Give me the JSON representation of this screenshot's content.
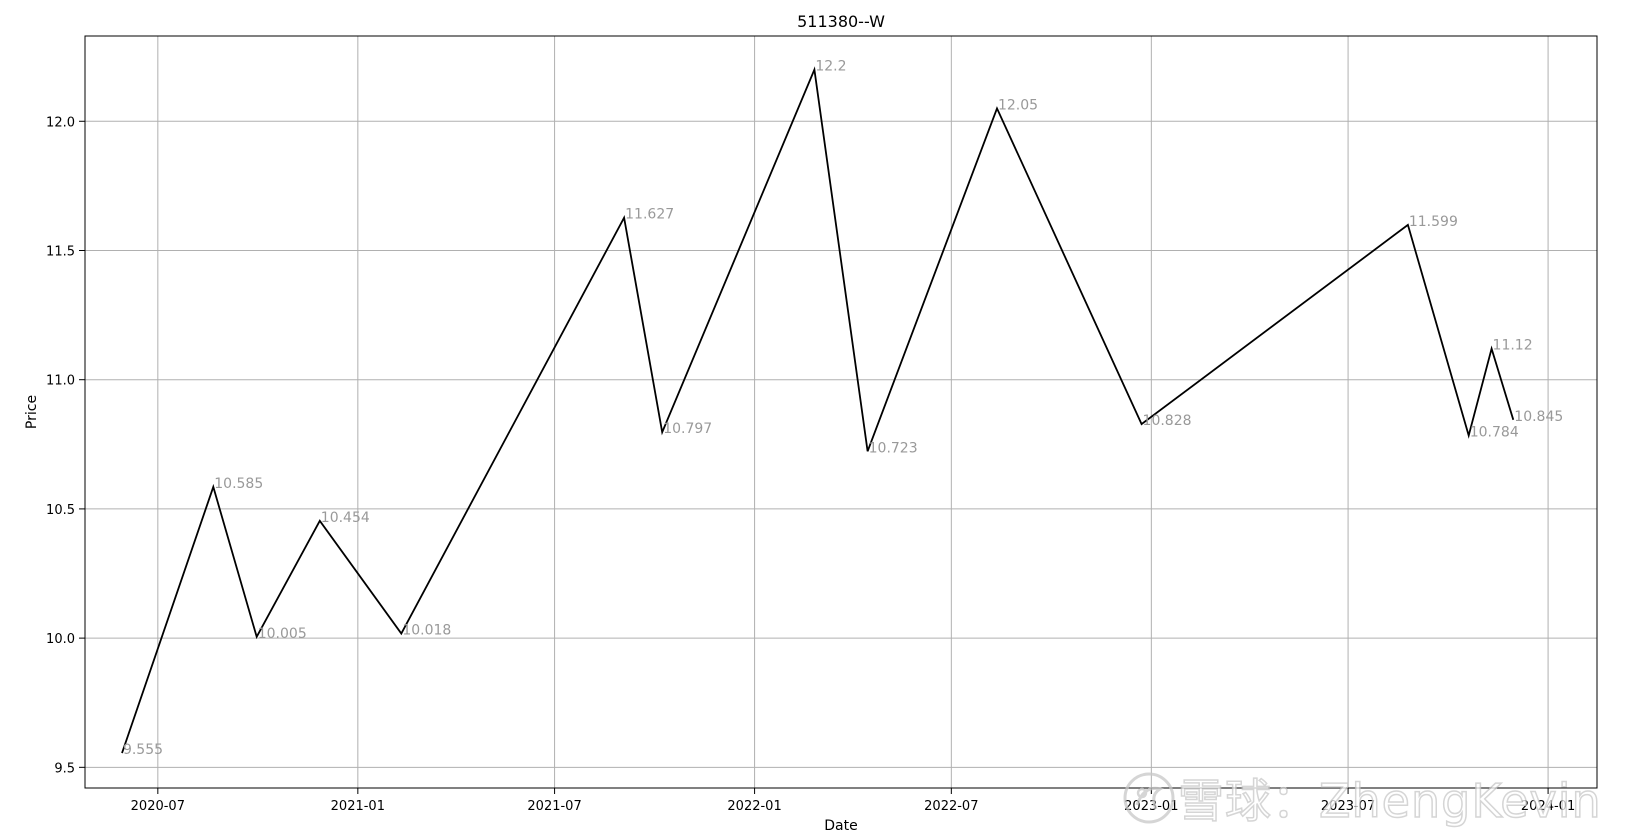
{
  "chart_data": {
    "type": "line",
    "title": "511380--W",
    "xlabel": "Date",
    "ylabel": "Price",
    "x_range": [
      "2020-04-25",
      "2024-02-15"
    ],
    "ylim": [
      9.42,
      12.33
    ],
    "x_ticks": [
      {
        "date": "2020-07-01",
        "label": "2020-07"
      },
      {
        "date": "2021-01-01",
        "label": "2021-01"
      },
      {
        "date": "2021-07-01",
        "label": "2021-07"
      },
      {
        "date": "2022-01-01",
        "label": "2022-01"
      },
      {
        "date": "2022-07-01",
        "label": "2022-07"
      },
      {
        "date": "2023-01-01",
        "label": "2023-01"
      },
      {
        "date": "2023-07-01",
        "label": "2023-07"
      },
      {
        "date": "2024-01-01",
        "label": "2024-01"
      }
    ],
    "y_ticks": [
      {
        "value": 9.5,
        "label": "9.5"
      },
      {
        "value": 10.0,
        "label": "10.0"
      },
      {
        "value": 10.5,
        "label": "10.5"
      },
      {
        "value": 11.0,
        "label": "11.0"
      },
      {
        "value": 11.5,
        "label": "11.5"
      },
      {
        "value": 12.0,
        "label": "12.0"
      }
    ],
    "grid": true,
    "series": [
      {
        "line_color": "#000000",
        "label_color": "#999999",
        "points": [
          {
            "x": "2020-05-29",
            "y": 9.555,
            "label": "9.555"
          },
          {
            "x": "2020-08-21",
            "y": 10.585,
            "label": "10.585"
          },
          {
            "x": "2020-09-30",
            "y": 10.005,
            "label": "10.005"
          },
          {
            "x": "2020-11-27",
            "y": 10.454,
            "label": "10.454"
          },
          {
            "x": "2021-02-10",
            "y": 10.018,
            "label": "10.018"
          },
          {
            "x": "2021-09-03",
            "y": 11.627,
            "label": "11.627"
          },
          {
            "x": "2021-10-08",
            "y": 10.797,
            "label": "10.797"
          },
          {
            "x": "2022-02-25",
            "y": 12.2,
            "label": "12.2"
          },
          {
            "x": "2022-04-15",
            "y": 10.723,
            "label": "10.723"
          },
          {
            "x": "2022-08-12",
            "y": 12.05,
            "label": "12.05"
          },
          {
            "x": "2022-12-23",
            "y": 10.828,
            "label": "10.828"
          },
          {
            "x": "2023-08-25",
            "y": 11.599,
            "label": "11.599"
          },
          {
            "x": "2023-10-20",
            "y": 10.784,
            "label": "10.784"
          },
          {
            "x": "2023-11-10",
            "y": 11.12,
            "label": "11.12"
          },
          {
            "x": "2023-11-30",
            "y": 10.845,
            "label": "10.845"
          }
        ]
      }
    ]
  },
  "watermark": {
    "text": "雪球：ZhengKevin",
    "icon": "snowball-logo-icon"
  }
}
